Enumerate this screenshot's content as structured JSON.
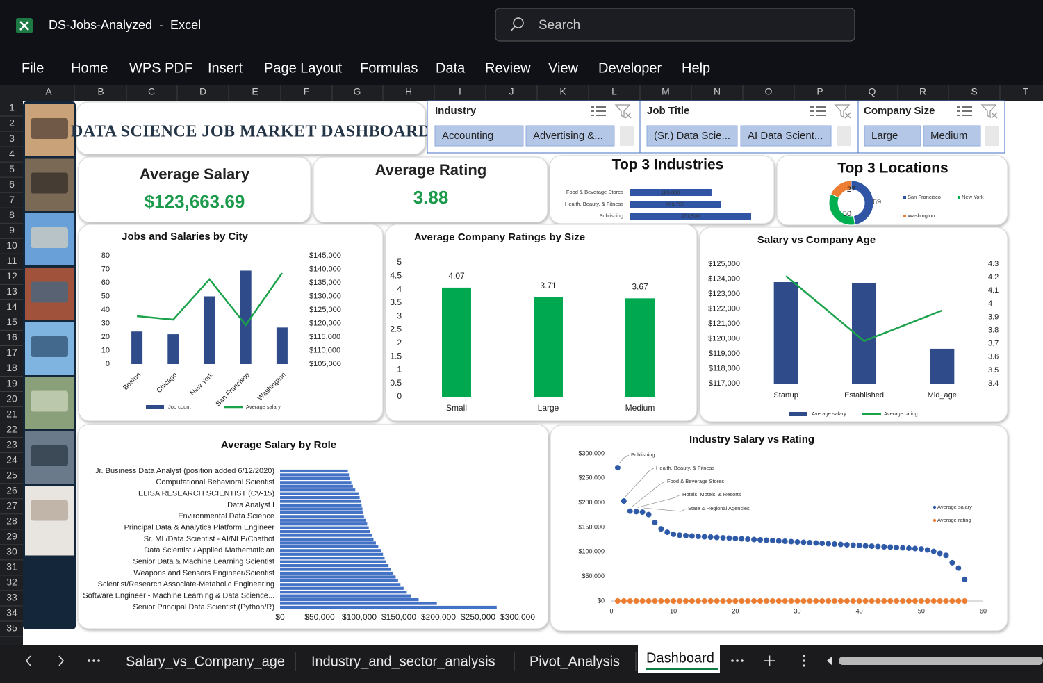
{
  "window": {
    "title": "DS-Jobs-Analyzed  -  Excel",
    "search": "Search"
  },
  "menu": [
    "File",
    "Home",
    "WPS PDF",
    "Insert",
    "Page Layout",
    "Formulas",
    "Data",
    "Review",
    "View",
    "Developer",
    "Help"
  ],
  "columns": [
    "A",
    "B",
    "C",
    "D",
    "E",
    "F",
    "G",
    "H",
    "I",
    "J",
    "K",
    "L",
    "M",
    "N",
    "O",
    "P",
    "Q",
    "R",
    "S",
    "T"
  ],
  "rows": [
    1,
    2,
    3,
    4,
    5,
    6,
    7,
    8,
    9,
    10,
    11,
    12,
    13,
    14,
    15,
    16,
    17,
    18,
    19,
    20,
    21,
    22,
    23,
    24,
    25,
    26,
    27,
    28,
    29,
    30,
    31,
    32,
    33,
    34,
    35
  ],
  "dashboard": {
    "title": "DATA SCIENCE JOB MARKET DASHBOARD"
  },
  "slicers": [
    {
      "title": "Industry",
      "items": [
        "Accounting",
        "Advertising &..."
      ]
    },
    {
      "title": "Job Title",
      "items": [
        "(Sr.) Data Scie...",
        "AI Data Scient..."
      ]
    },
    {
      "title": "Company Size",
      "items": [
        "Large",
        "Medium"
      ]
    }
  ],
  "kpis": [
    {
      "label": "Average Salary",
      "value": "$123,663.69"
    },
    {
      "label": "Average Rating",
      "value": "3.88"
    }
  ],
  "charts": [
    {
      "type": "hbar",
      "title": "Top 3 Industries",
      "categories": [
        "Food & Beverage Stores",
        "Health, Beauty, & Fitness",
        "Publishing"
      ],
      "values": [
        183000,
        203750,
        271500
      ],
      "value_labels": [
        "183,000",
        "203,750",
        "271,500"
      ],
      "color": "#2f55a4"
    },
    {
      "type": "donut",
      "title": "Top 3 Locations",
      "categories": [
        "San Francisco",
        "New York",
        "Washington"
      ],
      "values": [
        69,
        50,
        27
      ],
      "colors": [
        "#2f55a4",
        "#00b050",
        "#ed7d31"
      ]
    },
    {
      "type": "bar-line",
      "title": "Jobs and Salaries by City",
      "categories": [
        "Boston",
        "Chicago",
        "New York",
        "San Francisco",
        "Washington"
      ],
      "series": [
        {
          "name": "Job count",
          "type": "bar",
          "color": "#2f4b8a",
          "values": [
            24,
            22,
            50,
            69,
            27
          ]
        },
        {
          "name": "Average salary",
          "type": "line",
          "axis": "y2",
          "color": "#1aa34a",
          "values": [
            122700,
            121400,
            136300,
            119400,
            138600
          ]
        }
      ],
      "ylim": [
        0,
        80
      ],
      "yticks": [
        0,
        10,
        20,
        30,
        40,
        50,
        60,
        70,
        80
      ],
      "y2lim": [
        105000,
        145000
      ],
      "y2ticks": [
        {
          "value": 105000,
          "label": "$105,000"
        },
        {
          "value": 110000,
          "label": "$110,000"
        },
        {
          "value": 115000,
          "label": "$115,000"
        },
        {
          "value": 120000,
          "label": "$120,000"
        },
        {
          "value": 125000,
          "label": "$125,000"
        },
        {
          "value": 130000,
          "label": "$130,000"
        },
        {
          "value": 135000,
          "label": "$135,000"
        },
        {
          "value": 140000,
          "label": "$140,000"
        },
        {
          "value": 145000,
          "label": "$145,000"
        }
      ]
    },
    {
      "type": "bar",
      "title": "Average Company Ratings by Size",
      "categories": [
        "Small",
        "Large",
        "Medium"
      ],
      "values": [
        4.07,
        3.71,
        3.67
      ],
      "color": "#00a84f",
      "ylim": [
        0,
        5
      ],
      "yticks": [
        0,
        0.5,
        1,
        1.5,
        2,
        2.5,
        3,
        3.5,
        4,
        4.5,
        5
      ]
    },
    {
      "type": "bar-line",
      "title": "Salary vs Company Age",
      "categories": [
        "Startup",
        "Established",
        "Mid_age"
      ],
      "series": [
        {
          "name": "Average salary",
          "type": "bar",
          "color": "#2f4b8a",
          "values": [
            123790,
            123700,
            119330
          ]
        },
        {
          "name": "Average rating",
          "type": "line",
          "axis": "y2",
          "color": "#1aa34a",
          "values": [
            4.21,
            3.72,
            3.95
          ]
        }
      ],
      "ylim": [
        117000,
        125000
      ],
      "yticks": [
        {
          "value": 117000,
          "label": "$117,000"
        },
        {
          "value": 118000,
          "label": "$118,000"
        },
        {
          "value": 119000,
          "label": "$119,000"
        },
        {
          "value": 120000,
          "label": "$120,000"
        },
        {
          "value": 121000,
          "label": "$121,000"
        },
        {
          "value": 122000,
          "label": "$122,000"
        },
        {
          "value": 123000,
          "label": "$123,000"
        },
        {
          "value": 124000,
          "label": "$124,000"
        },
        {
          "value": 125000,
          "label": "$125,000"
        }
      ],
      "y2lim": [
        3.4,
        4.3
      ],
      "y2ticks": [
        3.4,
        3.5,
        3.6,
        3.7,
        3.8,
        3.9,
        4,
        4.1,
        4.2,
        4.3
      ]
    },
    {
      "type": "hbar",
      "title": "Average Salary by Role",
      "color": "#4472c4",
      "categories": [
        "Jr. Business Data Analyst (position added 6/12/2020)",
        null,
        null,
        "Computational Behavioral Scientist",
        null,
        null,
        "ELISA RESEARCH SCIENTIST (CV-15)",
        null,
        null,
        "Data Analyst I",
        null,
        null,
        "Environmental Data Science",
        null,
        null,
        "Principal Data & Analytics Platform Engineer",
        null,
        null,
        "Sr. ML/Data Scientist - AI/NLP/Chatbot",
        null,
        null,
        "Data Scientist / Applied Mathematician",
        null,
        null,
        "Senior Data & Machine Learning Scientist",
        null,
        null,
        "Weapons and Sensors Engineer/Scientist",
        null,
        null,
        "Scientist/Research Associate-Metabolic Engineering",
        null,
        null,
        "Software Engineer - Machine Learning & Data Science...",
        null,
        null,
        "Senior Principal Data Scientist (Python/R)"
      ],
      "values": [
        85600,
        87000,
        88500,
        90000,
        92000,
        95000,
        99000,
        100500,
        102000,
        103000,
        104000,
        105000,
        106000,
        108000,
        110000,
        112000,
        114000,
        116000,
        118000,
        121000,
        124000,
        128000,
        130000,
        132000,
        134000,
        137000,
        140000,
        143000,
        146000,
        149000,
        152000,
        156000,
        160000,
        165000,
        175000,
        198000,
        273500
      ],
      "xlim": [
        0,
        300000
      ],
      "xticks": [
        {
          "value": 0,
          "label": "$0"
        },
        {
          "value": 50000,
          "label": "$50,000"
        },
        {
          "value": 100000,
          "label": "$100,000"
        },
        {
          "value": 150000,
          "label": "$150,000"
        },
        {
          "value": 200000,
          "label": "$200,000"
        },
        {
          "value": 250000,
          "label": "$250,000"
        },
        {
          "value": 300000,
          "label": "$300,000"
        }
      ]
    },
    {
      "type": "scatter",
      "title": "Industry Salary vs Rating",
      "x": [
        1,
        2,
        3,
        4,
        5,
        6,
        7,
        8,
        9,
        10,
        11,
        12,
        13,
        14,
        15,
        16,
        17,
        18,
        19,
        20,
        21,
        22,
        23,
        24,
        25,
        26,
        27,
        28,
        29,
        30,
        31,
        32,
        33,
        34,
        35,
        36,
        37,
        38,
        39,
        40,
        41,
        42,
        43,
        44,
        45,
        46,
        47,
        48,
        49,
        50,
        51,
        52,
        53,
        54,
        55,
        56,
        57
      ],
      "series": [
        {
          "name": "Average salary",
          "color": "#2f5aa8",
          "values": [
            271500,
            203750,
            183000,
            182000,
            181000,
            176000,
            160000,
            147000,
            140000,
            136000,
            134000,
            133000,
            132300,
            131600,
            130900,
            130200,
            129500,
            128700,
            128000,
            127300,
            126600,
            125900,
            125200,
            124500,
            123800,
            123100,
            122400,
            121700,
            121000,
            120200,
            119500,
            118800,
            118100,
            117400,
            116700,
            116000,
            115300,
            114600,
            113900,
            113200,
            112400,
            111700,
            111000,
            110300,
            109600,
            108900,
            108200,
            107500,
            106800,
            106000,
            104000,
            101000,
            97000,
            93000,
            78000,
            67000,
            44000
          ]
        },
        {
          "name": "Average rating",
          "color": "#ed7d31",
          "values": [
            3.9,
            4.1,
            3.8,
            3.7,
            4.0,
            3.6,
            4.2,
            3.9,
            3.8,
            4.0,
            3.7,
            3.9,
            4.1,
            3.6,
            3.8,
            4.0,
            3.9,
            3.7,
            4.2,
            3.8,
            3.9,
            4.0,
            3.6,
            3.8,
            4.1,
            3.9,
            3.7,
            4.0,
            3.8,
            3.9,
            4.2,
            3.7,
            3.8,
            4.0,
            3.9,
            3.6,
            4.1,
            3.8,
            3.9,
            4.0,
            3.7,
            3.8,
            4.2,
            3.9,
            3.8,
            3.6,
            4.0,
            3.9,
            3.7,
            4.1,
            3.8,
            3.9,
            4.0,
            3.7,
            3.8,
            4.1,
            3.9
          ]
        }
      ],
      "annotations": [
        "Publishing",
        "Health, Beauty, & Fitness",
        "Food & Beverage Stores",
        "Hotels, Motels, & Resorts",
        "State & Regional Agencies"
      ],
      "xlim": [
        0,
        60
      ],
      "xticks": [
        0,
        10,
        20,
        30,
        40,
        50,
        60
      ],
      "ylim": [
        0,
        300000
      ],
      "yticks": [
        {
          "value": 0,
          "label": "$0"
        },
        {
          "value": 50000,
          "label": "$50,000"
        },
        {
          "value": 100000,
          "label": "$100,000"
        },
        {
          "value": 150000,
          "label": "$150,000"
        },
        {
          "value": 200000,
          "label": "$200,000"
        },
        {
          "value": 250000,
          "label": "$250,000"
        },
        {
          "value": 300000,
          "label": "$300,000"
        }
      ]
    }
  ],
  "sheet_tabs": [
    {
      "name": "Salary_vs_Company_age",
      "active": false
    },
    {
      "name": "Industry_and_sector_analysis",
      "active": false
    },
    {
      "name": "Pivot_Analysis",
      "active": false
    },
    {
      "name": "Dashboard",
      "active": true
    }
  ]
}
